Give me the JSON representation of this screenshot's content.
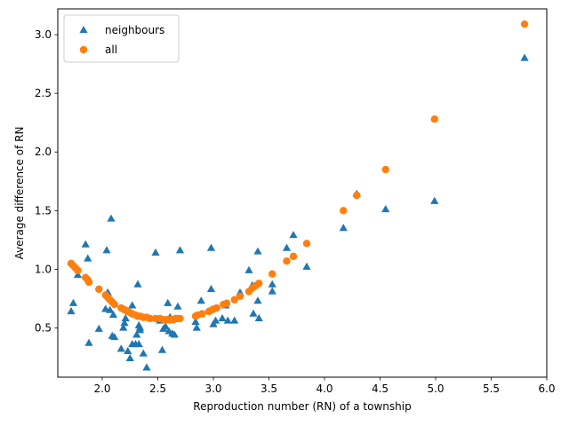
{
  "chart_data": {
    "type": "scatter",
    "xlabel": "Reproduction number (RN) of a township",
    "ylabel": "Average difference of RN",
    "xlim": [
      1.6,
      6.0
    ],
    "ylim": [
      0.08,
      3.22
    ],
    "xticks": [
      2.0,
      2.5,
      3.0,
      3.5,
      4.0,
      4.5,
      5.0,
      5.5,
      6.0
    ],
    "yticks": [
      0.5,
      1.0,
      1.5,
      2.0,
      2.5,
      3.0
    ],
    "xtick_labels": [
      "2.0",
      "2.5",
      "3.0",
      "3.5",
      "4.0",
      "4.5",
      "5.0",
      "5.5",
      "6.0"
    ],
    "ytick_labels": [
      "0.5",
      "1.0",
      "1.5",
      "2.0",
      "2.5",
      "3.0"
    ],
    "grid": false,
    "legend": "top-left",
    "series": [
      {
        "name": "neighbours",
        "marker": "triangle",
        "color": "#1f77b4",
        "x": [
          1.72,
          1.74,
          1.78,
          1.85,
          1.87,
          1.88,
          1.97,
          2.03,
          2.04,
          2.05,
          2.07,
          2.08,
          2.09,
          2.1,
          2.11,
          2.17,
          2.19,
          2.2,
          2.21,
          2.23,
          2.25,
          2.27,
          2.27,
          2.3,
          2.31,
          2.32,
          2.33,
          2.33,
          2.34,
          2.34,
          2.37,
          2.4,
          2.48,
          2.52,
          2.54,
          2.55,
          2.57,
          2.59,
          2.6,
          2.61,
          2.63,
          2.65,
          2.68,
          2.7,
          2.84,
          2.85,
          2.89,
          2.98,
          2.98,
          3.0,
          3.02,
          3.08,
          3.11,
          3.13,
          3.19,
          3.24,
          3.32,
          3.35,
          3.36,
          3.4,
          3.4,
          3.41,
          3.53,
          3.53,
          3.66,
          3.72,
          3.84,
          4.17,
          4.29,
          4.55,
          4.99,
          5.8
        ],
        "y": [
          0.64,
          0.71,
          0.95,
          1.21,
          1.09,
          0.37,
          0.49,
          0.66,
          1.16,
          0.8,
          0.65,
          1.43,
          0.43,
          0.61,
          0.42,
          0.32,
          0.5,
          0.54,
          0.58,
          0.3,
          0.24,
          0.69,
          0.36,
          0.36,
          0.44,
          0.87,
          0.36,
          0.52,
          0.48,
          0.5,
          0.28,
          0.16,
          1.14,
          0.56,
          0.31,
          0.49,
          0.51,
          0.71,
          0.47,
          0.59,
          0.45,
          0.44,
          0.68,
          1.16,
          0.55,
          0.5,
          0.73,
          1.18,
          0.83,
          0.53,
          0.56,
          0.58,
          0.69,
          0.56,
          0.56,
          0.8,
          0.99,
          0.86,
          0.62,
          1.15,
          0.73,
          0.58,
          0.87,
          0.81,
          1.18,
          1.29,
          1.02,
          1.35,
          1.64,
          1.51,
          1.58,
          2.8
        ]
      },
      {
        "name": "all",
        "marker": "circle",
        "color": "#ff7f0e",
        "x": [
          1.72,
          1.74,
          1.76,
          1.78,
          1.85,
          1.87,
          1.88,
          1.97,
          2.03,
          2.05,
          2.07,
          2.09,
          2.11,
          2.17,
          2.19,
          2.21,
          2.23,
          2.25,
          2.27,
          2.3,
          2.32,
          2.34,
          2.37,
          2.4,
          2.43,
          2.48,
          2.52,
          2.55,
          2.58,
          2.6,
          2.62,
          2.64,
          2.66,
          2.68,
          2.7,
          2.84,
          2.86,
          2.9,
          2.96,
          2.98,
          3.0,
          3.03,
          3.09,
          3.12,
          3.19,
          3.24,
          3.32,
          3.35,
          3.38,
          3.41,
          3.53,
          3.66,
          3.72,
          3.84,
          4.17,
          4.29,
          4.55,
          4.99,
          5.8
        ],
        "y": [
          1.05,
          1.03,
          1.01,
          0.99,
          0.93,
          0.91,
          0.89,
          0.83,
          0.78,
          0.76,
          0.74,
          0.72,
          0.7,
          0.67,
          0.66,
          0.65,
          0.64,
          0.63,
          0.62,
          0.61,
          0.6,
          0.6,
          0.59,
          0.59,
          0.58,
          0.58,
          0.58,
          0.57,
          0.57,
          0.57,
          0.57,
          0.57,
          0.58,
          0.58,
          0.58,
          0.6,
          0.61,
          0.62,
          0.64,
          0.65,
          0.66,
          0.67,
          0.7,
          0.71,
          0.74,
          0.77,
          0.81,
          0.84,
          0.86,
          0.88,
          0.96,
          1.07,
          1.11,
          1.22,
          1.5,
          1.63,
          1.85,
          2.28,
          3.09
        ]
      }
    ]
  }
}
